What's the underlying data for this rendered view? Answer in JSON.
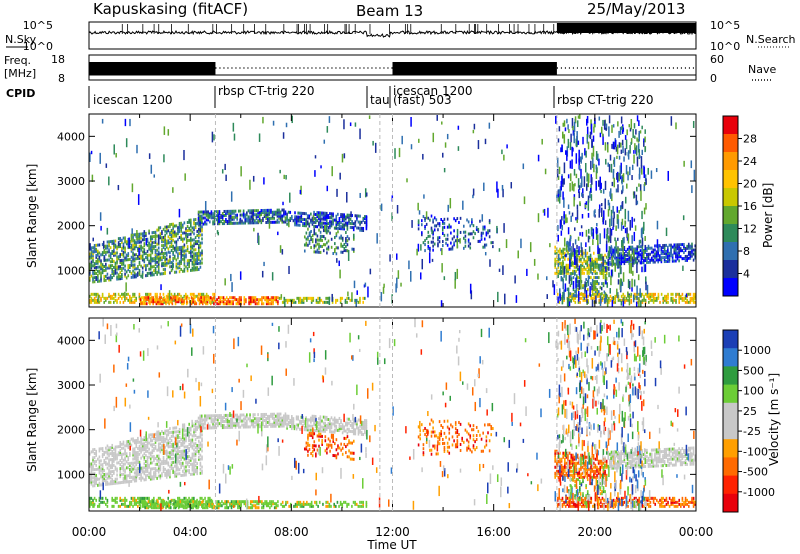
{
  "header": {
    "station": "Kapuskasing (fitACF)",
    "beam": "Beam 13",
    "date": "25/May/2013"
  },
  "left_labels": {
    "nsky": "N.Sky",
    "freq": "Freq.",
    "freq_unit": "[MHz]",
    "cpid": "CPID"
  },
  "right_labels": {
    "nsearch": "N.Search",
    "nave": "Nave"
  },
  "noise_axis": {
    "left_ticks": [
      "10^5",
      "10^0"
    ],
    "right_ticks": [
      "10^5",
      "10^0"
    ]
  },
  "freq_axis": {
    "left_ticks": [
      "18",
      "8"
    ],
    "right_ticks": [
      "60",
      "0"
    ]
  },
  "cpid_segments": [
    {
      "label": "icescan 1200",
      "start": 0.0
    },
    {
      "label": "rbsp CT-trig 220",
      "start": 5.0
    },
    {
      "label": "tau",
      "start": 11.5
    },
    {
      "label": "icescan 1200",
      "start": 12.0
    },
    {
      "label": "(fast) 503",
      "start": 12.0
    },
    {
      "label": "rbsp CT-trig 220",
      "start": 18.5
    }
  ],
  "chart_data": [
    {
      "type": "heatmap",
      "name": "power",
      "ylabel": "Slant Range [km]",
      "xlabel": "Time UT",
      "xlim": [
        0,
        24
      ],
      "ylim": [
        180,
        4500
      ],
      "yticks": [
        1000,
        2000,
        3000,
        4000
      ],
      "xtick_labels": [
        "00:00",
        "04:00",
        "08:00",
        "12:00",
        "16:00",
        "20:00",
        "00:00"
      ],
      "colorbar_label": "Power [dB]",
      "colorbar_ticks": [
        "28",
        "24",
        "20",
        "16",
        "12",
        "8",
        "4"
      ],
      "colorbar_colors": [
        "#e8000b",
        "#ff5a00",
        "#ff9a00",
        "#ffc300",
        "#c9c800",
        "#62a82e",
        "#2e8a5a",
        "#2f6fb0",
        "#1b2f9c",
        "#0000ff"
      ]
    },
    {
      "type": "heatmap",
      "name": "velocity",
      "ylabel": "Slant Range [km]",
      "xlabel": "Time UT",
      "xlim": [
        0,
        24
      ],
      "ylim": [
        180,
        4500
      ],
      "yticks": [
        1000,
        2000,
        3000,
        4000
      ],
      "xtick_labels": [
        "00:00",
        "04:00",
        "08:00",
        "12:00",
        "16:00",
        "20:00",
        "00:00"
      ],
      "colorbar_label": "Velocity [m s⁻¹]",
      "colorbar_ticks": [
        "1000",
        "500",
        "100",
        "25",
        "-25",
        "-100",
        "-500",
        "-1000"
      ],
      "colorbar_colors": [
        "#1b3fb5",
        "#2f7cd1",
        "#2f9c3f",
        "#6ccd36",
        "#c8c8c8",
        "#c8c8c8",
        "#ff9f00",
        "#ff6a00",
        "#ff2200",
        "#e8000b"
      ]
    }
  ],
  "x_axis_label": "Time UT"
}
